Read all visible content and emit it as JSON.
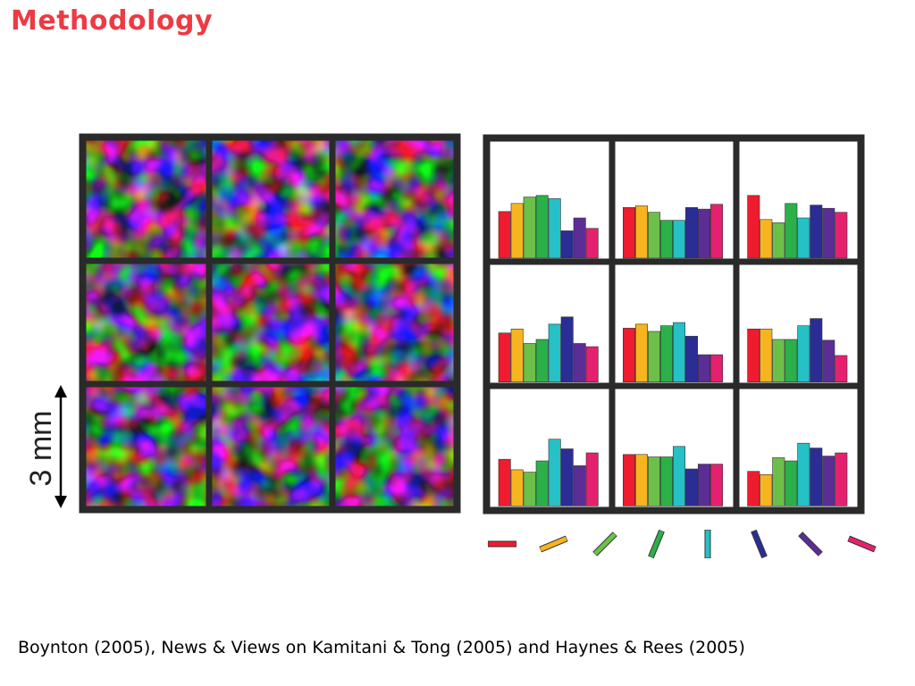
{
  "slide": {
    "title": "Methodology",
    "citation": "Boynton (2005), News & Views on Kamitani & Tong (2005) and Haynes & Rees (2005)"
  },
  "scale_bar": {
    "label": "3 mm"
  },
  "colors": {
    "frame": "#2a2a2a",
    "orientations": [
      "#ee1c2e",
      "#f6b41e",
      "#6cc04a",
      "#2bb04a",
      "#25c1c6",
      "#2b2d96",
      "#5b2e96",
      "#e5206e"
    ]
  },
  "orientation_key": [
    0,
    22.5,
    45,
    67.5,
    90,
    112.5,
    135,
    157.5
  ],
  "voxel_response_grid": {
    "rows": 3,
    "cols": 3,
    "cells": [
      [
        0.58,
        0.68,
        0.76,
        0.78,
        0.74,
        0.34,
        0.5,
        0.37
      ],
      [
        0.63,
        0.65,
        0.57,
        0.47,
        0.47,
        0.63,
        0.61,
        0.67
      ],
      [
        0.78,
        0.48,
        0.44,
        0.68,
        0.5,
        0.66,
        0.62,
        0.57
      ],
      [
        0.61,
        0.66,
        0.48,
        0.53,
        0.72,
        0.81,
        0.48,
        0.44
      ],
      [
        0.67,
        0.72,
        0.63,
        0.7,
        0.74,
        0.57,
        0.34,
        0.34
      ],
      [
        0.66,
        0.66,
        0.53,
        0.53,
        0.7,
        0.79,
        0.52,
        0.33
      ],
      [
        0.58,
        0.45,
        0.42,
        0.56,
        0.83,
        0.71,
        0.5,
        0.66
      ],
      [
        0.64,
        0.64,
        0.61,
        0.61,
        0.74,
        0.46,
        0.52,
        0.52
      ],
      [
        0.43,
        0.39,
        0.6,
        0.56,
        0.78,
        0.72,
        0.62,
        0.66
      ]
    ]
  }
}
